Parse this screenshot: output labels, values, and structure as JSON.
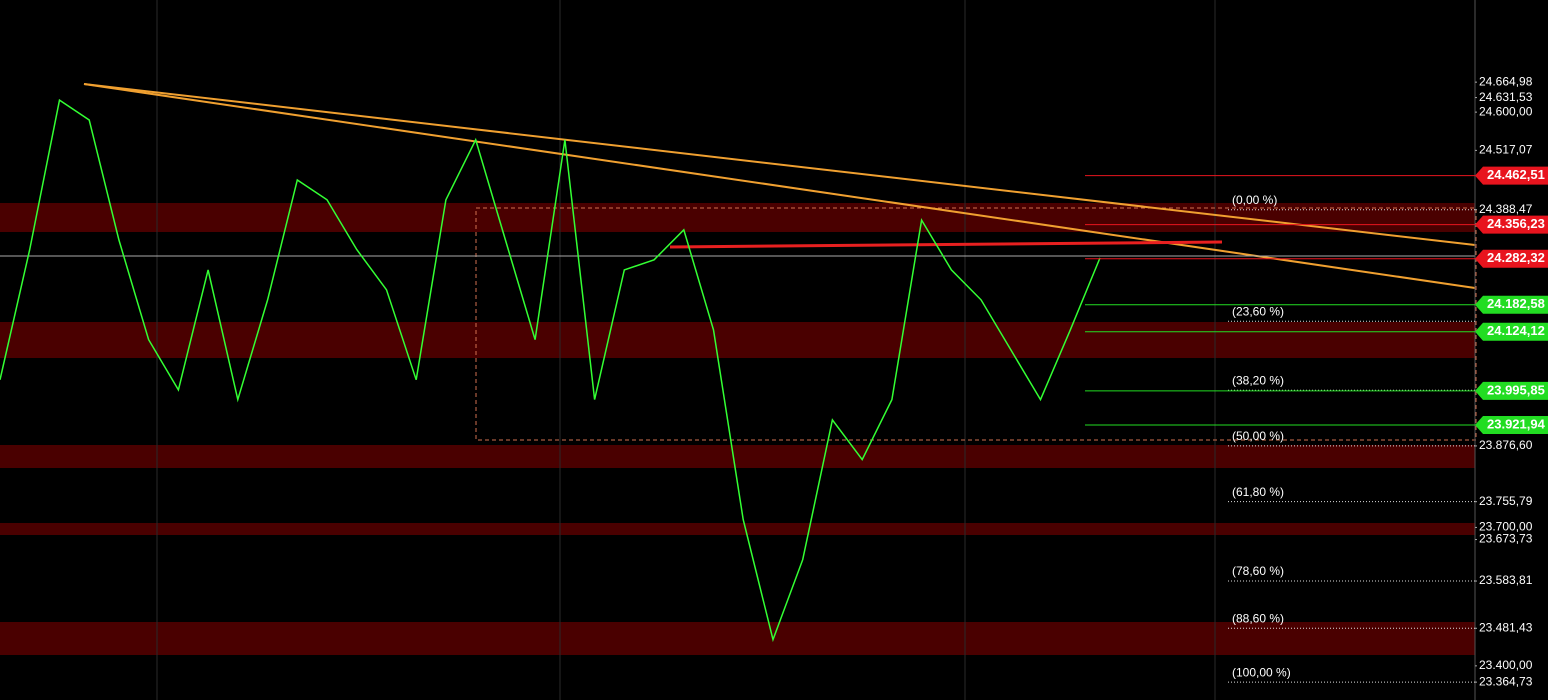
{
  "chart_data": {
    "type": "line",
    "categories": [
      null,
      null,
      null,
      null,
      null,
      null,
      null,
      null,
      null,
      null,
      null,
      null,
      null,
      null,
      null,
      null,
      null,
      null,
      null,
      null,
      null,
      null,
      null,
      null,
      null,
      null,
      null,
      null,
      null,
      null,
      null,
      null,
      null,
      null,
      null,
      null,
      null,
      null
    ],
    "series": [
      {
        "name": "Price",
        "color": "#33ff33",
        "values": [
          24020,
          24302,
          24626,
          24583,
          24323,
          24107,
          23998,
          24258,
          23977,
          24193,
          24453,
          24410,
          24302,
          24215,
          24020,
          24410,
          24540,
          24323,
          24107,
          24540,
          23977,
          24258,
          24280,
          24345,
          24128,
          23717,
          23457,
          23630,
          23933,
          23847,
          23977,
          24366,
          24258,
          24193,
          24085,
          23977,
          24128,
          24284
        ]
      }
    ],
    "ylim": [
      23326,
      24843
    ],
    "yticks": [
      {
        "value": 24664.98,
        "label": "24.664,98"
      },
      {
        "value": 24631.53,
        "label": "24.631,53"
      },
      {
        "value": 24600.0,
        "label": "24.600,00"
      },
      {
        "value": 24517.07,
        "label": "24.517,07"
      },
      {
        "value": 24388.47,
        "label": "24.388,47"
      },
      {
        "value": 23876.6,
        "label": "23.876,60"
      },
      {
        "value": 23755.79,
        "label": "23.755,79"
      },
      {
        "value": 23700.0,
        "label": "23.700,00"
      },
      {
        "value": 23673.73,
        "label": "23.673,73"
      },
      {
        "value": 23583.81,
        "label": "23.583,81"
      },
      {
        "value": 23481.43,
        "label": "23.481,43"
      },
      {
        "value": 23400.0,
        "label": "23.400,00"
      },
      {
        "value": 23364.73,
        "label": "23.364,73"
      }
    ],
    "price_tags": [
      {
        "value": 24462.51,
        "label": "24.462,51",
        "color": "#e8141e"
      },
      {
        "value": 24356.23,
        "label": "24.356,23",
        "color": "#e8141e"
      },
      {
        "value": 24282.32,
        "label": "24.282,32",
        "color": "#e8141e"
      },
      {
        "value": 24182.58,
        "label": "24.182,58",
        "color": "#22dd22"
      },
      {
        "value": 24124.12,
        "label": "24.124,12",
        "color": "#22dd22"
      },
      {
        "value": 23995.85,
        "label": "23.995,85",
        "color": "#22dd22"
      },
      {
        "value": 23921.94,
        "label": "23.921,94",
        "color": "#22dd22"
      }
    ],
    "fib_levels": [
      {
        "value": 24388.47,
        "label": "(0,00 %)"
      },
      {
        "value": 24146.87,
        "label": "(23,60 %)"
      },
      {
        "value": 23997.4,
        "label": "(38,20 %)"
      },
      {
        "value": 23876.6,
        "label": "(50,00 %)"
      },
      {
        "value": 23755.79,
        "label": "(61,80 %)"
      },
      {
        "value": 23583.81,
        "label": "(78,60 %)"
      },
      {
        "value": 23481.43,
        "label": "(88,60 %)"
      },
      {
        "value": 23364.73,
        "label": "(100,00 %)"
      }
    ]
  }
}
